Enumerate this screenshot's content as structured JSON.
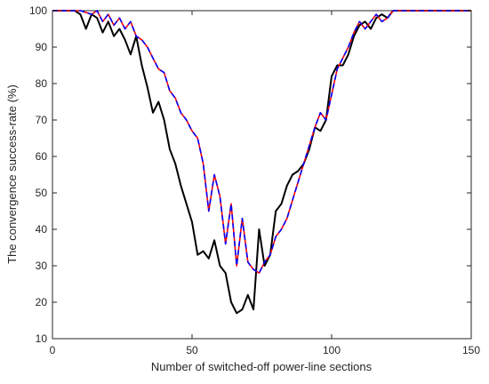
{
  "chart_data": {
    "type": "line",
    "title": "",
    "xlabel": "Number of switched-off power-line sections",
    "ylabel": "The convergence success-rate (%)",
    "xlim": [
      0,
      150
    ],
    "ylim": [
      10,
      100
    ],
    "xticks": [
      0,
      50,
      100,
      150
    ],
    "yticks": [
      10,
      20,
      30,
      40,
      50,
      60,
      70,
      80,
      90,
      100
    ],
    "grid": false,
    "legend": "none",
    "series": [
      {
        "color": "#000000",
        "style": "solid",
        "x": [
          0,
          5,
          8,
          10,
          12,
          14,
          16,
          18,
          20,
          22,
          24,
          26,
          28,
          30,
          32,
          34,
          36,
          38,
          40,
          42,
          44,
          46,
          48,
          50,
          52,
          54,
          56,
          58,
          60,
          62,
          64,
          66,
          68,
          70,
          72,
          74,
          76,
          78,
          80,
          82,
          84,
          86,
          88,
          90,
          92,
          94,
          96,
          98,
          100,
          102,
          104,
          106,
          108,
          110,
          112,
          114,
          116,
          118,
          120,
          122,
          124,
          126,
          130,
          135,
          140,
          145,
          150
        ],
        "y": [
          100,
          100,
          100,
          99,
          95,
          99,
          98,
          94,
          97,
          93,
          95,
          92,
          88,
          93,
          85,
          79,
          72,
          75,
          70,
          62,
          58,
          52,
          47,
          42,
          33,
          34,
          32,
          37,
          30,
          28,
          20,
          17,
          18,
          22,
          18,
          40,
          30,
          33,
          45,
          47,
          52,
          55,
          56,
          58,
          62,
          68,
          67,
          70,
          82,
          85,
          85,
          88,
          93,
          96,
          97,
          95,
          98,
          99,
          98,
          100,
          100,
          100,
          100,
          100,
          100,
          100,
          100
        ]
      },
      {
        "color": "#ff0000",
        "style": "solid",
        "x": [
          0,
          5,
          10,
          14,
          16,
          18,
          20,
          22,
          24,
          26,
          28,
          30,
          32,
          34,
          36,
          38,
          40,
          42,
          44,
          46,
          48,
          50,
          52,
          54,
          56,
          58,
          60,
          62,
          64,
          66,
          68,
          70,
          72,
          74,
          76,
          78,
          80,
          82,
          84,
          86,
          88,
          90,
          92,
          94,
          96,
          98,
          100,
          102,
          104,
          106,
          108,
          110,
          112,
          114,
          116,
          118,
          120,
          122,
          124,
          126,
          130,
          135,
          140,
          145,
          150
        ],
        "y": [
          100,
          100,
          100,
          99,
          100,
          97,
          99,
          96,
          98,
          95,
          97,
          93,
          92,
          90,
          87,
          84,
          83,
          78,
          76,
          72,
          70,
          67,
          65,
          58,
          45,
          55,
          49,
          36,
          47,
          30,
          43,
          31,
          29,
          28,
          31,
          33,
          38,
          40,
          43,
          48,
          53,
          58,
          63,
          68,
          72,
          70,
          77,
          84,
          87,
          90,
          94,
          97,
          95,
          97,
          99,
          97,
          98,
          100,
          100,
          100,
          100,
          100,
          100,
          100,
          100
        ]
      },
      {
        "color": "#0000ff",
        "style": "dashed",
        "x": [
          0,
          5,
          10,
          14,
          16,
          18,
          20,
          22,
          24,
          26,
          28,
          30,
          32,
          34,
          36,
          38,
          40,
          42,
          44,
          46,
          48,
          50,
          52,
          54,
          56,
          58,
          60,
          62,
          64,
          66,
          68,
          70,
          72,
          74,
          76,
          78,
          80,
          82,
          84,
          86,
          88,
          90,
          92,
          94,
          96,
          98,
          100,
          102,
          104,
          106,
          108,
          110,
          112,
          114,
          116,
          118,
          120,
          122,
          124,
          126,
          130,
          135,
          140,
          145,
          150
        ],
        "y": [
          100,
          100,
          100,
          99,
          100,
          97,
          99,
          96,
          98,
          95,
          97,
          93,
          92,
          90,
          87,
          84,
          83,
          78,
          76,
          72,
          70,
          67,
          65,
          58,
          45,
          55,
          49,
          36,
          47,
          30,
          43,
          31,
          29,
          28,
          31,
          33,
          38,
          40,
          43,
          48,
          53,
          58,
          63,
          68,
          72,
          70,
          77,
          84,
          87,
          90,
          94,
          97,
          95,
          97,
          99,
          97,
          98,
          100,
          100,
          100,
          100,
          100,
          100,
          100,
          100
        ]
      }
    ]
  }
}
